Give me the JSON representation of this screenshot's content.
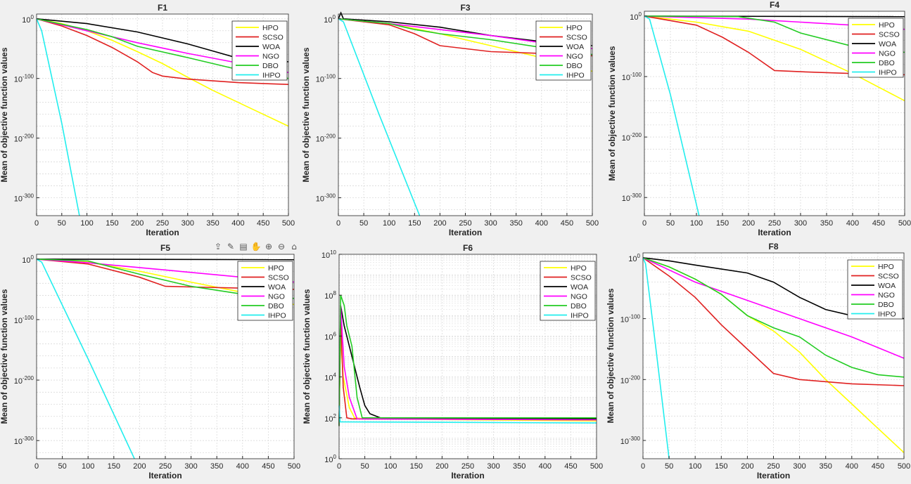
{
  "toolbar": {
    "icons": [
      "export-icon",
      "brush-icon",
      "datatips-icon",
      "pan-icon",
      "zoom-in-icon",
      "zoom-out-icon",
      "home-icon"
    ],
    "glyphs": [
      "⇪",
      "✎",
      "▤",
      "✋",
      "⊕",
      "⊖",
      "⌂"
    ]
  },
  "colors": {
    "HPO": "#ffff00",
    "SCSO": "#e02020",
    "WOA": "#000000",
    "NGO": "#ff00ff",
    "DBO": "#22cc22",
    "IHPO": "#22eeee"
  },
  "chart_data": [
    {
      "type": "line",
      "title": "F1",
      "xlabel": "Iteration",
      "ylabel": "Mean of objective function values",
      "yscale": "log",
      "xlim": [
        0,
        500
      ],
      "ylim": [
        -330,
        8
      ],
      "xticks": [
        0,
        50,
        100,
        150,
        200,
        250,
        300,
        350,
        400,
        450,
        500
      ],
      "yticks": [
        {
          "v": 0,
          "label": "10^0"
        },
        {
          "v": -100,
          "label": "10^-100"
        },
        {
          "v": -200,
          "label": "10^-200"
        },
        {
          "v": -300,
          "label": "10^-300"
        }
      ],
      "legend": [
        "HPO",
        "SCSO",
        "WOA",
        "NGO",
        "DBO",
        "IHPO"
      ],
      "series": [
        {
          "name": "HPO",
          "x": [
            0,
            50,
            100,
            150,
            200,
            250,
            300,
            350,
            400,
            450,
            500
          ],
          "y": [
            0,
            -8,
            -20,
            -36,
            -55,
            -75,
            -98,
            -120,
            -140,
            -160,
            -180
          ]
        },
        {
          "name": "SCSO",
          "x": [
            0,
            50,
            100,
            150,
            200,
            230,
            250,
            300,
            400,
            500
          ],
          "y": [
            0,
            -12,
            -28,
            -48,
            -72,
            -90,
            -96,
            -101,
            -107,
            -110
          ]
        },
        {
          "name": "WOA",
          "x": [
            0,
            100,
            200,
            300,
            350,
            400,
            500
          ],
          "y": [
            0,
            -8,
            -22,
            -42,
            -54,
            -66,
            -72
          ]
        },
        {
          "name": "NGO",
          "x": [
            0,
            100,
            200,
            300,
            400,
            500
          ],
          "y": [
            0,
            -20,
            -40,
            -58,
            -74,
            -90
          ]
        },
        {
          "name": "DBO",
          "x": [
            0,
            100,
            150,
            200,
            300,
            400,
            500
          ],
          "y": [
            0,
            -18,
            -30,
            -46,
            -65,
            -85,
            -100
          ]
        },
        {
          "name": "IHPO",
          "x": [
            0,
            10,
            50,
            85
          ],
          "y": [
            0,
            -20,
            -175,
            -330
          ]
        }
      ]
    },
    {
      "type": "line",
      "title": "F3",
      "xlabel": "Iteration",
      "ylabel": "Mean of objective function values",
      "yscale": "log",
      "xlim": [
        0,
        500
      ],
      "ylim": [
        -330,
        8
      ],
      "xticks": [
        0,
        50,
        100,
        150,
        200,
        250,
        300,
        350,
        400,
        450,
        500
      ],
      "yticks": [
        {
          "v": 0,
          "label": "10^0"
        },
        {
          "v": -100,
          "label": "10^-100"
        },
        {
          "v": -200,
          "label": "10^-200"
        },
        {
          "v": -300,
          "label": "10^-300"
        }
      ],
      "legend": [
        "HPO",
        "SCSO",
        "WOA",
        "NGO",
        "DBO",
        "IHPO"
      ],
      "series": [
        {
          "name": "HPO",
          "x": [
            0,
            100,
            200,
            300,
            400,
            500
          ],
          "y": [
            0,
            -8,
            -25,
            -45,
            -65,
            -88
          ]
        },
        {
          "name": "SCSO",
          "x": [
            0,
            100,
            150,
            200,
            300,
            400,
            500
          ],
          "y": [
            0,
            -10,
            -25,
            -45,
            -55,
            -58,
            -62
          ]
        },
        {
          "name": "WOA",
          "x": [
            0,
            5,
            10,
            100,
            200,
            300,
            400,
            500
          ],
          "y": [
            0,
            10,
            0,
            -5,
            -14,
            -28,
            -38,
            -45
          ]
        },
        {
          "name": "NGO",
          "x": [
            0,
            100,
            200,
            300,
            400,
            500
          ],
          "y": [
            0,
            -8,
            -18,
            -28,
            -40,
            -50
          ]
        },
        {
          "name": "DBO",
          "x": [
            0,
            100,
            150,
            200,
            300,
            400,
            500
          ],
          "y": [
            0,
            -8,
            -18,
            -25,
            -35,
            -48,
            -60
          ]
        },
        {
          "name": "IHPO",
          "x": [
            0,
            10,
            80,
            160
          ],
          "y": [
            0,
            -5,
            -160,
            -330
          ]
        }
      ]
    },
    {
      "type": "line",
      "title": "F4",
      "xlabel": "Iteration",
      "ylabel": "Mean of objective function values",
      "yscale": "log",
      "xlim": [
        0,
        500
      ],
      "ylim": [
        -330,
        8
      ],
      "xticks": [
        0,
        50,
        100,
        150,
        200,
        250,
        300,
        350,
        400,
        450,
        500
      ],
      "yticks": [
        {
          "v": 0,
          "label": "10^0"
        },
        {
          "v": -100,
          "label": "10^-100"
        },
        {
          "v": -200,
          "label": "10^-200"
        },
        {
          "v": -300,
          "label": "10^-300"
        }
      ],
      "legend": [
        "HPO",
        "SCSO",
        "WOA",
        "NGO",
        "DBO",
        "IHPO"
      ],
      "series": [
        {
          "name": "HPO",
          "x": [
            0,
            100,
            200,
            300,
            400,
            500
          ],
          "y": [
            0,
            -10,
            -25,
            -55,
            -95,
            -140
          ]
        },
        {
          "name": "SCSO",
          "x": [
            0,
            100,
            150,
            200,
            250,
            300,
            400,
            500
          ],
          "y": [
            0,
            -15,
            -35,
            -60,
            -90,
            -92,
            -95,
            -97
          ]
        },
        {
          "name": "WOA",
          "x": [
            0,
            500
          ],
          "y": [
            0,
            -1
          ]
        },
        {
          "name": "NGO",
          "x": [
            0,
            200,
            300,
            400,
            500
          ],
          "y": [
            0,
            -5,
            -10,
            -15,
            -22
          ]
        },
        {
          "name": "DBO",
          "x": [
            0,
            180,
            250,
            300,
            400,
            500
          ],
          "y": [
            0,
            -1,
            -10,
            -28,
            -50,
            -60
          ]
        },
        {
          "name": "IHPO",
          "x": [
            0,
            10,
            50,
            105
          ],
          "y": [
            0,
            -5,
            -130,
            -330
          ]
        }
      ]
    },
    {
      "type": "line",
      "title": "F5",
      "xlabel": "Iteration",
      "ylabel": "Mean of objective function values",
      "yscale": "log",
      "xlim": [
        0,
        500
      ],
      "ylim": [
        -330,
        8
      ],
      "xticks": [
        0,
        50,
        100,
        150,
        200,
        250,
        300,
        350,
        400,
        450,
        500
      ],
      "yticks": [
        {
          "v": 0,
          "label": "10^0"
        },
        {
          "v": -100,
          "label": "10^-100"
        },
        {
          "v": -200,
          "label": "10^-200"
        },
        {
          "v": -300,
          "label": "10^-300"
        }
      ],
      "legend": [
        "HPO",
        "SCSO",
        "WOA",
        "NGO",
        "DBO",
        "IHPO"
      ],
      "series": [
        {
          "name": "HPO",
          "x": [
            0,
            100,
            200,
            300,
            400,
            500
          ],
          "y": [
            0,
            -5,
            -20,
            -38,
            -55,
            -75
          ]
        },
        {
          "name": "SCSO",
          "x": [
            0,
            100,
            200,
            250,
            300,
            400,
            500
          ],
          "y": [
            0,
            -8,
            -30,
            -45,
            -46,
            -48,
            -50
          ]
        },
        {
          "name": "WOA",
          "x": [
            0,
            500
          ],
          "y": [
            0,
            -1
          ]
        },
        {
          "name": "NGO",
          "x": [
            0,
            100,
            200,
            300,
            400,
            500
          ],
          "y": [
            0,
            -6,
            -14,
            -22,
            -30,
            -38
          ]
        },
        {
          "name": "DBO",
          "x": [
            0,
            100,
            200,
            300,
            400,
            500
          ],
          "y": [
            0,
            -3,
            -25,
            -45,
            -58,
            -65
          ]
        },
        {
          "name": "IHPO",
          "x": [
            0,
            10,
            100,
            190
          ],
          "y": [
            0,
            -5,
            -165,
            -330
          ]
        }
      ]
    },
    {
      "type": "line",
      "title": "F6",
      "xlabel": "Iteration",
      "ylabel": "Mean of objective function values",
      "yscale": "log",
      "xlim": [
        0,
        500
      ],
      "ylim": [
        0,
        10
      ],
      "xticks": [
        0,
        50,
        100,
        150,
        200,
        250,
        300,
        350,
        400,
        450,
        500
      ],
      "yticks": [
        {
          "v": 0,
          "label": "10^0"
        },
        {
          "v": 2,
          "label": "10^2"
        },
        {
          "v": 4,
          "label": "10^4"
        },
        {
          "v": 6,
          "label": "10^6"
        },
        {
          "v": 8,
          "label": "10^8"
        },
        {
          "v": 10,
          "label": "10^10"
        }
      ],
      "legend": [
        "HPO",
        "SCSO",
        "WOA",
        "NGO",
        "DBO",
        "IHPO"
      ],
      "series": [
        {
          "name": "HPO",
          "x": [
            0,
            3,
            8,
            20,
            30,
            50,
            500
          ],
          "y": [
            1.6,
            6,
            4,
            2.5,
            2.0,
            1.95,
            1.85
          ]
        },
        {
          "name": "SCSO",
          "x": [
            0,
            3,
            8,
            15,
            25,
            500
          ],
          "y": [
            1.6,
            7,
            3.5,
            2.0,
            1.95,
            1.9
          ]
        },
        {
          "name": "WOA",
          "x": [
            0,
            3,
            10,
            25,
            40,
            50,
            60,
            80,
            100,
            500
          ],
          "y": [
            1.6,
            7.5,
            6.5,
            5,
            3.5,
            2.6,
            2.2,
            2.0,
            1.95,
            1.95
          ]
        },
        {
          "name": "NGO",
          "x": [
            0,
            3,
            10,
            20,
            35,
            500
          ],
          "y": [
            1.6,
            7.5,
            4.5,
            3.0,
            1.95,
            1.9
          ]
        },
        {
          "name": "DBO",
          "x": [
            0,
            3,
            10,
            15,
            25,
            35,
            45,
            500
          ],
          "y": [
            1.6,
            8,
            7.5,
            6.5,
            5.5,
            3.0,
            2.0,
            2.0
          ]
        },
        {
          "name": "IHPO",
          "x": [
            0,
            2,
            4,
            500
          ],
          "y": [
            2.6,
            1.8,
            1.8,
            1.75
          ]
        }
      ]
    },
    {
      "type": "line",
      "title": "F8",
      "xlabel": "Iteration",
      "ylabel": "Mean of objective function values",
      "yscale": "log",
      "xlim": [
        0,
        500
      ],
      "ylim": [
        -330,
        8
      ],
      "xticks": [
        0,
        50,
        100,
        150,
        200,
        250,
        300,
        350,
        400,
        450,
        500
      ],
      "yticks": [
        {
          "v": 0,
          "label": "10^0"
        },
        {
          "v": -100,
          "label": "10^-100"
        },
        {
          "v": -200,
          "label": "10^-200"
        },
        {
          "v": -300,
          "label": "10^-300"
        }
      ],
      "legend": [
        "HPO",
        "SCSO",
        "WOA",
        "NGO",
        "DBO",
        "IHPO"
      ],
      "series": [
        {
          "name": "HPO",
          "x": [
            0,
            50,
            100,
            150,
            200,
            250,
            300,
            350,
            400,
            450,
            500
          ],
          "y": [
            0,
            -15,
            -35,
            -60,
            -95,
            -120,
            -155,
            -200,
            -240,
            -280,
            -320
          ]
        },
        {
          "name": "SCSO",
          "x": [
            0,
            50,
            100,
            150,
            200,
            250,
            300,
            400,
            500
          ],
          "y": [
            0,
            -30,
            -65,
            -110,
            -150,
            -190,
            -200,
            -207,
            -210
          ]
        },
        {
          "name": "WOA",
          "x": [
            0,
            50,
            100,
            200,
            250,
            300,
            350,
            400,
            500
          ],
          "y": [
            0,
            -5,
            -12,
            -25,
            -40,
            -65,
            -85,
            -95,
            -100
          ]
        },
        {
          "name": "NGO",
          "x": [
            0,
            100,
            200,
            300,
            400,
            500
          ],
          "y": [
            0,
            -40,
            -70,
            -100,
            -130,
            -165
          ]
        },
        {
          "name": "DBO",
          "x": [
            0,
            50,
            100,
            150,
            200,
            250,
            300,
            350,
            400,
            450,
            500
          ],
          "y": [
            0,
            -15,
            -35,
            -60,
            -95,
            -115,
            -130,
            -160,
            -180,
            -192,
            -196
          ]
        },
        {
          "name": "IHPO",
          "x": [
            0,
            5,
            25,
            50
          ],
          "y": [
            0,
            -10,
            -150,
            -330
          ]
        }
      ]
    }
  ]
}
